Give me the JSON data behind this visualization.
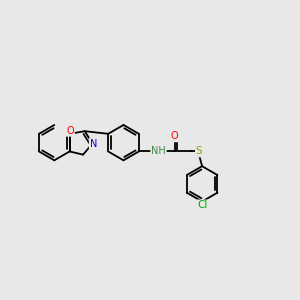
{
  "background_color": "#e8e8e8",
  "bond_color": "#000000",
  "atom_colors": {
    "O": "#ff0000",
    "N": "#0000cc",
    "S": "#999900",
    "Cl": "#00aa00",
    "NH": "#448844"
  },
  "line_width": 1.3,
  "figsize": [
    3.0,
    3.0
  ],
  "dpi": 100
}
